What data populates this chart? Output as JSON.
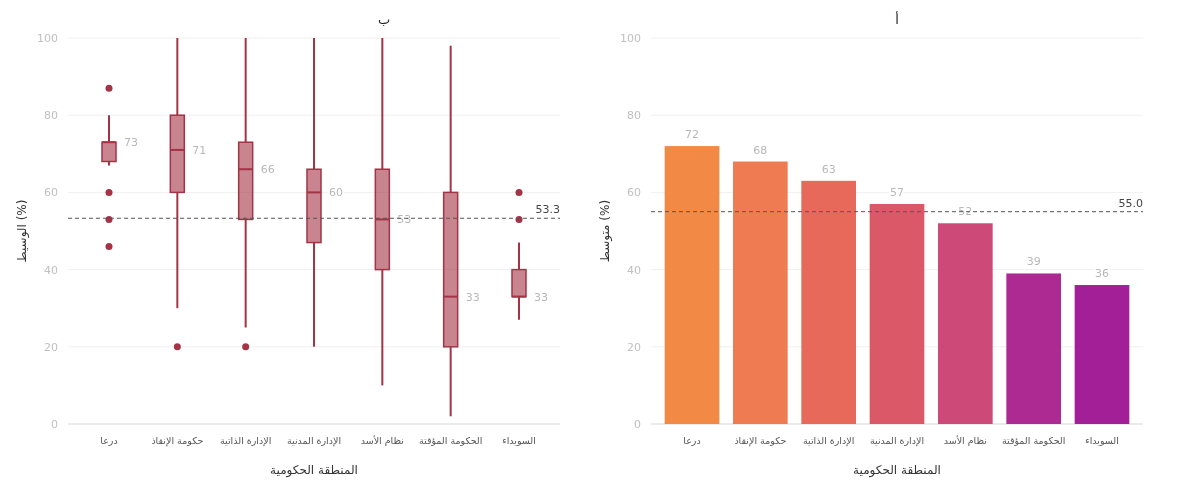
{
  "chart_data": [
    {
      "type": "box",
      "title": "ب",
      "xlabel": "المنطقة الحكومية",
      "ylabel": "الوسيط (%)",
      "categories": [
        "درعا",
        "حكومة الإنقاذ",
        "الإدارة الذاتية",
        "الإدارة المدنية",
        "نظام الأسد",
        "الحكومة المؤقتة",
        "السويداء"
      ],
      "series": [
        {
          "color": "#a33345",
          "value_labels": [
            "73",
            "71",
            "66",
            "60",
            "53",
            "33",
            "33"
          ],
          "boxes": [
            {
              "low": 67,
              "q1": 68,
              "median": 73,
              "q3": 73,
              "high": 80,
              "outliers": [
                87,
                60,
                53,
                46
              ]
            },
            {
              "low": 30,
              "q1": 60,
              "median": 71,
              "q3": 80,
              "high": 100,
              "outliers": [
                20
              ]
            },
            {
              "low": 25,
              "q1": 53,
              "median": 66,
              "q3": 73,
              "high": 100,
              "outliers": [
                20
              ]
            },
            {
              "low": 20,
              "q1": 47,
              "median": 60,
              "q3": 66,
              "high": 100
            },
            {
              "low": 10,
              "q1": 40,
              "median": 53,
              "q3": 66,
              "high": 100
            },
            {
              "low": 2,
              "q1": 20,
              "median": 33,
              "q3": 60,
              "high": 98
            },
            {
              "low": 27,
              "q1": 33,
              "median": 33,
              "q3": 40,
              "high": 47,
              "outliers": [
                53,
                60
              ]
            }
          ]
        }
      ],
      "ylim": [
        0,
        100
      ],
      "yticks": [
        0,
        20,
        40,
        60,
        80,
        100
      ],
      "grid": "y",
      "ref_lines": [
        {
          "axis": "y",
          "value": 53.3,
          "label": "53.3",
          "line_style": "dashed",
          "color": "#555555"
        }
      ]
    },
    {
      "type": "bar",
      "title": "أ",
      "xlabel": "المنطقة الحكومية",
      "ylabel": "متوسط (%)",
      "categories": [
        "درعا",
        "حكومة الإنقاذ",
        "الإدارة الذاتية",
        "الإدارة المدنية",
        "نظام الأسد",
        "الحكومة المؤقتة",
        "السويداء"
      ],
      "values": [
        72,
        68,
        63,
        57,
        52,
        39,
        36
      ],
      "colors": [
        "#f28a45",
        "#ef7b52",
        "#e6695a",
        "#db5868",
        "#cd4a78",
        "#ad2a93",
        "#a21f98"
      ],
      "data_labels": true,
      "ylim": [
        0,
        100
      ],
      "yticks": [
        0,
        20,
        40,
        60,
        80,
        100
      ],
      "grid": "y",
      "ref_lines": [
        {
          "axis": "y",
          "value": 55.0,
          "label": "55.0",
          "line_style": "dashed",
          "color": "#555555"
        }
      ]
    }
  ]
}
